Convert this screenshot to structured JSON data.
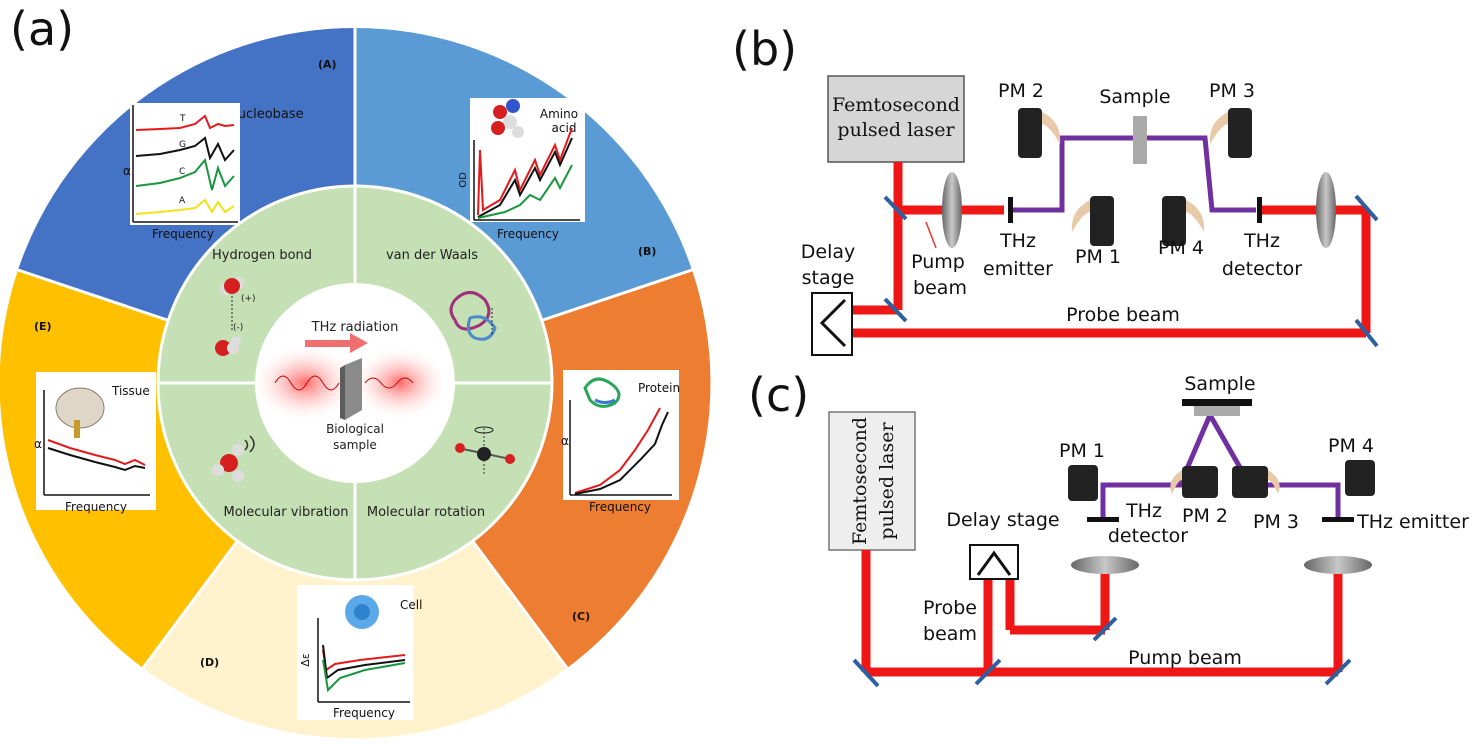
{
  "panels": {
    "a": "(a)",
    "b": "(b)",
    "c": "(c)"
  },
  "wheel": {
    "sections": {
      "A": {
        "tag": "(A)",
        "title": "Nucleobase",
        "ylabel": "α",
        "xlabel": "Frequency",
        "traces": [
          "T",
          "G",
          "C",
          "A"
        ]
      },
      "B": {
        "tag": "(B)",
        "title": "Amino acid",
        "title_line1": "Amino",
        "title_line2": "acid",
        "ylabel": "OD",
        "xlabel": "Frequency"
      },
      "C": {
        "tag": "(C)",
        "title": "Protein",
        "ylabel": "α",
        "xlabel": "Frequency"
      },
      "D": {
        "tag": "(D)",
        "title": "Cell",
        "ylabel": "Δε",
        "xlabel": "Frequency"
      },
      "E": {
        "tag": "(E)",
        "title": "Tissue",
        "ylabel": "α",
        "xlabel": "Frequency"
      }
    },
    "inner": {
      "hydrogen_bond": "Hydrogen bond",
      "van_der_waals": "van der Waals",
      "molecular_vibration": "Molecular vibration",
      "molecular_rotation": "Molecular rotation",
      "thz_radiation": "THz radiation",
      "biological_sample_line1": "Biological",
      "biological_sample_line2": "sample",
      "plus_charge": "(+)",
      "minus_charge": "(-)"
    },
    "colors": {
      "A": "#4472c4",
      "B": "#5b9bd5",
      "C": "#ed7d31",
      "D": "#fff2cc",
      "E": "#ffc000",
      "inner": "#c5e0b4"
    }
  },
  "setup_b": {
    "laser_line1": "Femtosecond",
    "laser_line2": "pulsed laser",
    "pm1": "PM 1",
    "pm2": "PM 2",
    "pm3": "PM 3",
    "pm4": "PM 4",
    "sample": "Sample",
    "delay_line1": "Delay",
    "delay_line2": "stage",
    "pump_line1": "Pump",
    "pump_line2": "beam",
    "emitter_line1": "THz",
    "emitter_line2": "emitter",
    "detector_line1": "THz",
    "detector_line2": "detector",
    "probe_beam": "Probe beam"
  },
  "setup_c": {
    "laser_line1": "Femtosecond",
    "laser_line2": "pulsed laser",
    "sample": "Sample",
    "pm1": "PM 1",
    "pm2": "PM 2",
    "pm3": "PM 3",
    "pm4": "PM 4",
    "detector_line1": "THz",
    "detector_line2": "detector",
    "thz_emitter": "THz emitter",
    "delay_stage": "Delay stage",
    "probe_line1": "Probe",
    "probe_line2": "beam",
    "pump_beam": "Pump beam"
  }
}
